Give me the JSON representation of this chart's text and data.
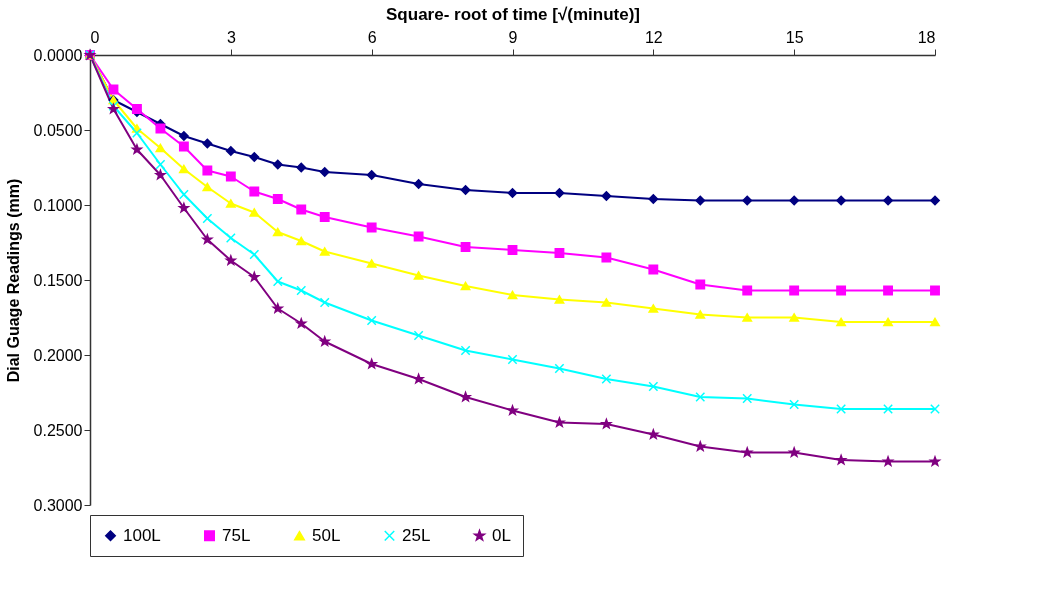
{
  "chart_data": {
    "type": "line",
    "xlabel": "Square- root of time [√(minute)]",
    "ylabel": "Dial Guage Readings (mm)",
    "x": [
      0,
      0.5,
      1,
      1.5,
      2,
      2.5,
      3,
      3.5,
      4,
      4.5,
      5,
      6,
      7,
      8,
      9,
      10,
      11,
      12,
      13,
      14,
      15,
      16,
      17,
      18
    ],
    "xlim": [
      0,
      18
    ],
    "xticks": [
      0,
      3,
      6,
      9,
      12,
      15,
      18
    ],
    "ylim": [
      0.3,
      0
    ],
    "yticks": [
      {
        "value": 0,
        "label": "0.0000"
      },
      {
        "value": 0.05,
        "label": "0.0500"
      },
      {
        "value": 0.1,
        "label": "0.1000"
      },
      {
        "value": 0.15,
        "label": "0.1500"
      },
      {
        "value": 0.2,
        "label": "0.2000"
      },
      {
        "value": 0.25,
        "label": "0.2500"
      },
      {
        "value": 0.3,
        "label": "0.3000"
      }
    ],
    "legend": "bottom",
    "line_style": "solid",
    "series": [
      {
        "name": "100L",
        "color": "#000080",
        "marker": "diamond",
        "values": [
          0,
          0.03,
          0.038,
          0.046,
          0.054,
          0.059,
          0.064,
          0.068,
          0.073,
          0.075,
          0.078,
          0.08,
          0.086,
          0.09,
          0.092,
          0.092,
          0.094,
          0.096,
          0.097,
          0.097,
          0.097,
          0.097,
          0.097,
          0.097
        ]
      },
      {
        "name": "75L",
        "color": "#ff00ff",
        "marker": "square",
        "values": [
          0,
          0.023,
          0.036,
          0.049,
          0.061,
          0.077,
          0.081,
          0.091,
          0.096,
          0.103,
          0.108,
          0.115,
          0.121,
          0.128,
          0.13,
          0.132,
          0.135,
          0.143,
          0.153,
          0.157,
          0.157,
          0.157,
          0.157,
          0.157
        ]
      },
      {
        "name": "50L",
        "color": "#ffff00",
        "marker": "triangle",
        "values": [
          0,
          0.03,
          0.049,
          0.062,
          0.076,
          0.088,
          0.099,
          0.105,
          0.118,
          0.124,
          0.131,
          0.139,
          0.147,
          0.154,
          0.16,
          0.163,
          0.165,
          0.169,
          0.173,
          0.175,
          0.175,
          0.178,
          0.178,
          0.178
        ]
      },
      {
        "name": "25L",
        "color": "#00ffff",
        "marker": "cross",
        "values": [
          0,
          0.034,
          0.052,
          0.073,
          0.093,
          0.109,
          0.122,
          0.133,
          0.151,
          0.157,
          0.165,
          0.177,
          0.187,
          0.197,
          0.203,
          0.209,
          0.216,
          0.221,
          0.228,
          0.229,
          0.233,
          0.236,
          0.236,
          0.236
        ]
      },
      {
        "name": "0L",
        "color": "#800080",
        "marker": "star",
        "values": [
          0,
          0.036,
          0.063,
          0.08,
          0.102,
          0.123,
          0.137,
          0.148,
          0.169,
          0.179,
          0.191,
          0.206,
          0.216,
          0.228,
          0.237,
          0.245,
          0.246,
          0.253,
          0.261,
          0.265,
          0.265,
          0.27,
          0.271,
          0.271
        ]
      }
    ]
  }
}
